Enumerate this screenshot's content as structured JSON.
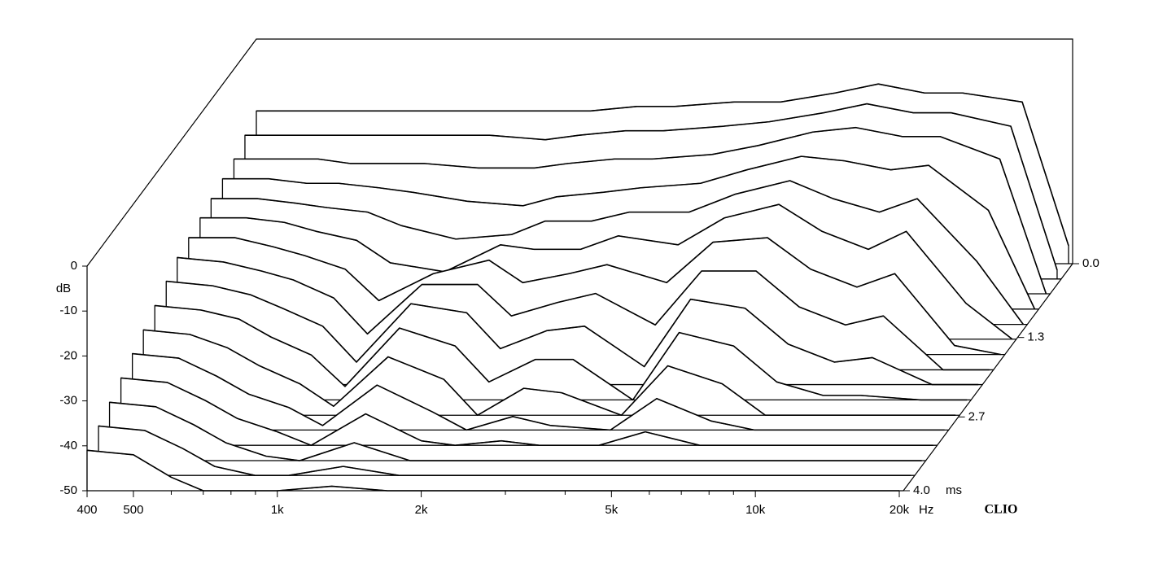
{
  "chart_data": {
    "type": "waterfall",
    "x": [
      400,
      500,
      600,
      700,
      850,
      1000,
      1300,
      1700,
      2000,
      2500,
      3000,
      4000,
      5000,
      6500,
      8000,
      10000,
      12000,
      16000,
      20000
    ],
    "xlim": [
      400,
      20000
    ],
    "xscale": "log",
    "xticks": [
      400,
      500,
      {
        "value": 1000,
        "label": "1k"
      },
      {
        "value": 2000,
        "label": "2k"
      },
      {
        "value": 5000,
        "label": "5k"
      },
      {
        "value": 10000,
        "label": "10k"
      },
      {
        "value": 20000,
        "label": "20k"
      }
    ],
    "xminorticks": [
      600,
      700,
      800,
      900,
      3000,
      4000,
      6000,
      7000,
      8000,
      9000
    ],
    "xunit": "Hz",
    "ylabel": "dB",
    "ylim": [
      -50,
      0
    ],
    "yticks": [
      0,
      -10,
      -20,
      -30,
      -40,
      -50
    ],
    "tlim": [
      0,
      4
    ],
    "tticks": [
      {
        "value": 0,
        "label": "0.0"
      },
      1.3,
      2.7,
      {
        "value": 4,
        "label": "4.0"
      }
    ],
    "tunit": "ms",
    "brand": "CLIO",
    "color": "#000000",
    "series": [
      {
        "name": "0.0",
        "t": 0,
        "values": [
          -16,
          -16,
          -16,
          -16,
          -16,
          -16,
          -16,
          -16,
          -16,
          -15,
          -15,
          -14,
          -14,
          -12,
          -10,
          -12,
          -12,
          -14,
          -46
        ]
      },
      {
        "name": "0.27",
        "t": 0.27,
        "values": [
          -18,
          -18,
          -18,
          -18,
          -18,
          -18,
          -18,
          -19,
          -18,
          -17,
          -17,
          -16,
          -15,
          -13,
          -11,
          -13,
          -13,
          -16,
          -48
        ]
      },
      {
        "name": "0.53",
        "t": 0.53,
        "values": [
          -20,
          -20,
          -20,
          -21,
          -21,
          -21,
          -22,
          -22,
          -21,
          -20,
          -20,
          -19,
          -17,
          -14,
          -13,
          -15,
          -15,
          -20,
          -50
        ]
      },
      {
        "name": "0.8",
        "t": 0.8,
        "values": [
          -21,
          -21,
          -22,
          -22,
          -23,
          -24,
          -26,
          -27,
          -25,
          -24,
          -23,
          -22,
          -19,
          -16,
          -17,
          -19,
          -18,
          -28,
          -50
        ]
      },
      {
        "name": "1.07",
        "t": 1.07,
        "values": [
          -22,
          -22,
          -23,
          -24,
          -25,
          -28,
          -31,
          -30,
          -27,
          -27,
          -25,
          -25,
          -21,
          -18,
          -22,
          -25,
          -22,
          -36,
          -50
        ]
      },
      {
        "name": "1.33",
        "t": 1.33,
        "values": [
          -23,
          -23,
          -24,
          -26,
          -28,
          -33,
          -35,
          -29,
          -30,
          -30,
          -27,
          -29,
          -23,
          -20,
          -26,
          -30,
          -26,
          -42,
          -50
        ]
      },
      {
        "name": "1.6",
        "t": 1.6,
        "values": [
          -24,
          -24,
          -26,
          -28,
          -31,
          -38,
          -32,
          -29,
          -34,
          -32,
          -30,
          -34,
          -25,
          -24,
          -31,
          -35,
          -32,
          -48,
          -50
        ]
      },
      {
        "name": "1.87",
        "t": 1.87,
        "values": [
          -25,
          -26,
          -28,
          -30,
          -34,
          -42,
          -31,
          -31,
          -38,
          -35,
          -33,
          -40,
          -28,
          -28,
          -36,
          -40,
          -38,
          -50,
          -50
        ]
      },
      {
        "name": "2.13",
        "t": 2.13,
        "values": [
          -27,
          -28,
          -30,
          -33,
          -37,
          -45,
          -32,
          -34,
          -42,
          -38,
          -37,
          -46,
          -31,
          -33,
          -41,
          -45,
          -44,
          -50,
          -50
        ]
      },
      {
        "name": "2.4",
        "t": 2.4,
        "values": [
          -29,
          -30,
          -32,
          -36,
          -40,
          -47,
          -34,
          -38,
          -46,
          -41,
          -41,
          -50,
          -35,
          -38,
          -46,
          -49,
          -49,
          -50,
          -50
        ]
      },
      {
        "name": "2.67",
        "t": 2.67,
        "values": [
          -31,
          -32,
          -35,
          -39,
          -43,
          -48,
          -37,
          -42,
          -50,
          -44,
          -45,
          -50,
          -39,
          -43,
          -50,
          -50,
          -50,
          -50,
          -50
        ]
      },
      {
        "name": "2.93",
        "t": 2.93,
        "values": [
          -33,
          -34,
          -38,
          -42,
          -45,
          -49,
          -40,
          -46,
          -50,
          -47,
          -49,
          -50,
          -43,
          -48,
          -50,
          -50,
          -50,
          -50,
          -50
        ]
      },
      {
        "name": "3.2",
        "t": 3.2,
        "values": [
          -35,
          -36,
          -40,
          -44,
          -47,
          -50,
          -43,
          -49,
          -50,
          -49,
          -50,
          -50,
          -47,
          -50,
          -50,
          -50,
          -50,
          -50,
          -50
        ]
      },
      {
        "name": "3.47",
        "t": 3.47,
        "values": [
          -37,
          -38,
          -42,
          -46,
          -49,
          -50,
          -46,
          -50,
          -50,
          -50,
          -50,
          -50,
          -50,
          -50,
          -50,
          -50,
          -50,
          -50,
          -50
        ]
      },
      {
        "name": "3.73",
        "t": 3.73,
        "values": [
          -39,
          -40,
          -44,
          -48,
          -50,
          -50,
          -48,
          -50,
          -50,
          -50,
          -50,
          -50,
          -50,
          -50,
          -50,
          -50,
          -50,
          -50,
          -50
        ]
      },
      {
        "name": "4.0",
        "t": 4.0,
        "values": [
          -41,
          -42,
          -47,
          -50,
          -50,
          -50,
          -49,
          -50,
          -50,
          -50,
          -50,
          -50,
          -50,
          -50,
          -50,
          -50,
          -50,
          -50,
          -50
        ]
      }
    ]
  }
}
